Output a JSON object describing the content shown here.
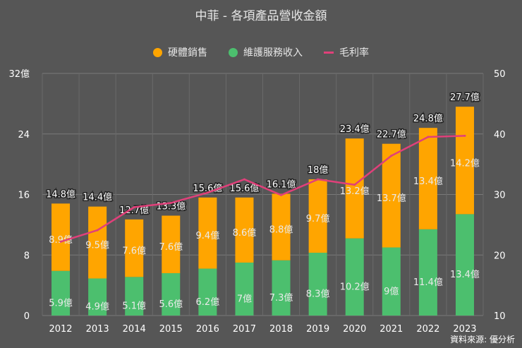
{
  "chart_data": {
    "type": "bar",
    "title": "中菲 - 各項產品營收金額",
    "categories": [
      "2012",
      "2013",
      "2014",
      "2015",
      "2016",
      "2017",
      "2018",
      "2019",
      "2020",
      "2021",
      "2022",
      "2023"
    ],
    "series": [
      {
        "name": "維護服務收入",
        "kind": "stacked-bar",
        "axis": "left",
        "color": "#4cbf6e",
        "values": [
          5.9,
          4.9,
          5.1,
          5.6,
          6.2,
          7,
          7.3,
          8.3,
          10.2,
          9,
          11.4,
          13.4
        ],
        "labels": [
          "5.9億",
          "4.9億",
          "5.1億",
          "5.6億",
          "6.2億",
          "7億",
          "7.3億",
          "8.3億",
          "10.2億",
          "9億",
          "11.4億",
          "13.4億"
        ]
      },
      {
        "name": "硬體銷售",
        "kind": "stacked-bar",
        "axis": "left",
        "color": "#ffa500",
        "values": [
          8.9,
          9.5,
          7.6,
          7.6,
          9.4,
          8.6,
          8.8,
          9.7,
          13.2,
          13.7,
          13.4,
          14.2
        ],
        "labels": [
          "8.9億",
          "9.5億",
          "7.6億",
          "7.6億",
          "9.4億",
          "8.6億",
          "8.8億",
          "9.7億",
          "13.2億",
          "13.7億",
          "13.4億",
          "14.2億"
        ]
      },
      {
        "name": "毛利率",
        "kind": "line",
        "axis": "right",
        "color": "#e0407a",
        "values": [
          22.2,
          24.1,
          27.9,
          28.6,
          30.3,
          32.5,
          29.9,
          32.5,
          31.6,
          36.4,
          39.5,
          39.7
        ]
      }
    ],
    "totals": [
      "14.8億",
      "14.4億",
      "12.7億",
      "13.3億",
      "15.6億",
      "15.6億",
      "16.1億",
      "18億",
      "23.4億",
      "22.7億",
      "24.8億",
      "27.7億"
    ],
    "legend_order": [
      "硬體銷售",
      "維護服務收入",
      "毛利率"
    ],
    "legend_position": "top",
    "y_left": {
      "ylim": [
        0,
        32
      ],
      "ticks": [
        "0",
        "8",
        "16",
        "24",
        "32億"
      ],
      "tick_values": [
        0,
        8,
        16,
        24,
        32
      ]
    },
    "y_right": {
      "ylim": [
        10,
        50
      ],
      "ticks": [
        "10",
        "20",
        "30",
        "40",
        "50"
      ],
      "tick_values": [
        10,
        20,
        30,
        40,
        50
      ]
    },
    "grid": true
  },
  "source": "資料來源: 優分析"
}
